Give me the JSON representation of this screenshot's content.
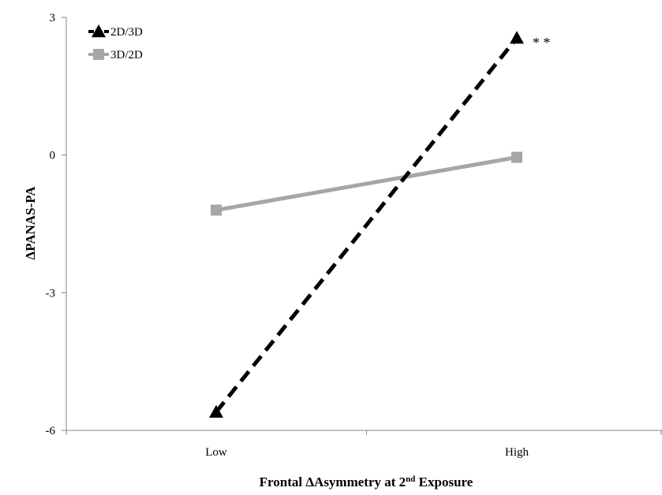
{
  "chart_data": {
    "type": "line",
    "title": "",
    "categories": [
      "Low",
      "High"
    ],
    "xlabel": "Frontal ΔAsymmetry at 2",
    "xlabel_sup": "nd",
    "xlabel_tail": " Exposure",
    "ylabel": "ΔPANAS-PA",
    "ylim": [
      -6,
      3
    ],
    "yticks": [
      3,
      0,
      -3,
      -6
    ],
    "ytick_labels": [
      "3",
      "0",
      "-3",
      "-6"
    ],
    "grid": false,
    "legend_position": "top-left",
    "series": [
      {
        "name": "2D/3D",
        "values": [
          -5.6,
          2.55
        ],
        "color": "#000000",
        "line_style": "dashed",
        "marker": "triangle"
      },
      {
        "name": "3D/2D",
        "values": [
          -1.2,
          -0.05
        ],
        "color": "#a6a6a6",
        "line_style": "solid",
        "marker": "square"
      }
    ],
    "annotations": [
      {
        "text": "* *",
        "series": 0,
        "category": 1
      }
    ]
  }
}
